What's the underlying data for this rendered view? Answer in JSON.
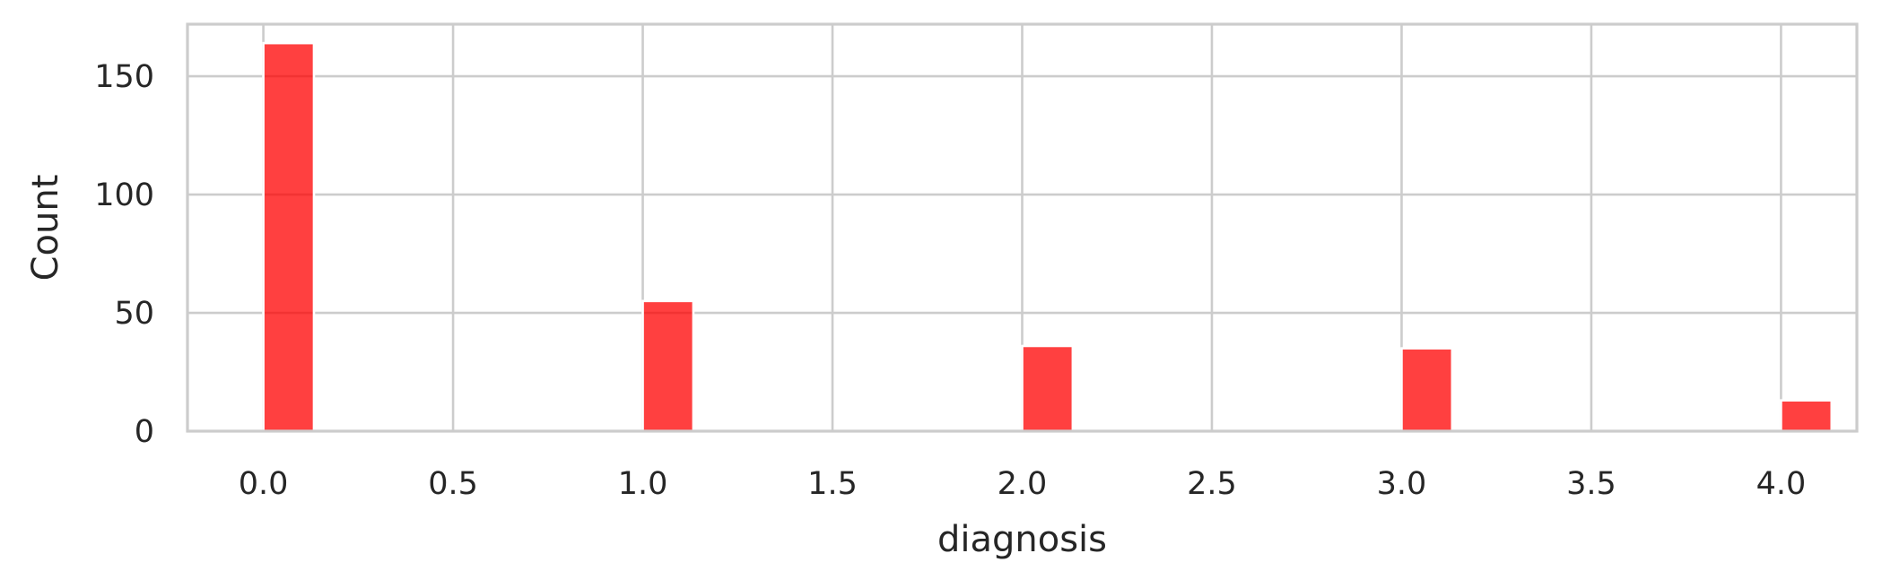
{
  "chart_data": {
    "type": "bar",
    "x": [
      0.0,
      1.0,
      2.0,
      3.0,
      4.0
    ],
    "values": [
      164,
      55,
      36,
      35,
      13
    ],
    "bin_width": 0.1333,
    "xlabel": "diagnosis",
    "ylabel": "Count",
    "title": "",
    "xlim": [
      -0.2,
      4.2
    ],
    "ylim": [
      0,
      172
    ],
    "xticks": [
      0.0,
      0.5,
      1.0,
      1.5,
      2.0,
      2.5,
      3.0,
      3.5,
      4.0
    ],
    "xtick_labels": [
      "0.0",
      "0.5",
      "1.0",
      "1.5",
      "2.0",
      "2.5",
      "3.0",
      "3.5",
      "4.0"
    ],
    "yticks": [
      0,
      50,
      100,
      150
    ],
    "ytick_labels": [
      "0",
      "50",
      "100",
      "150"
    ],
    "grid": true,
    "bar_color": "#ff0000",
    "bar_opacity": 0.75,
    "grid_color": "#cccccc"
  }
}
